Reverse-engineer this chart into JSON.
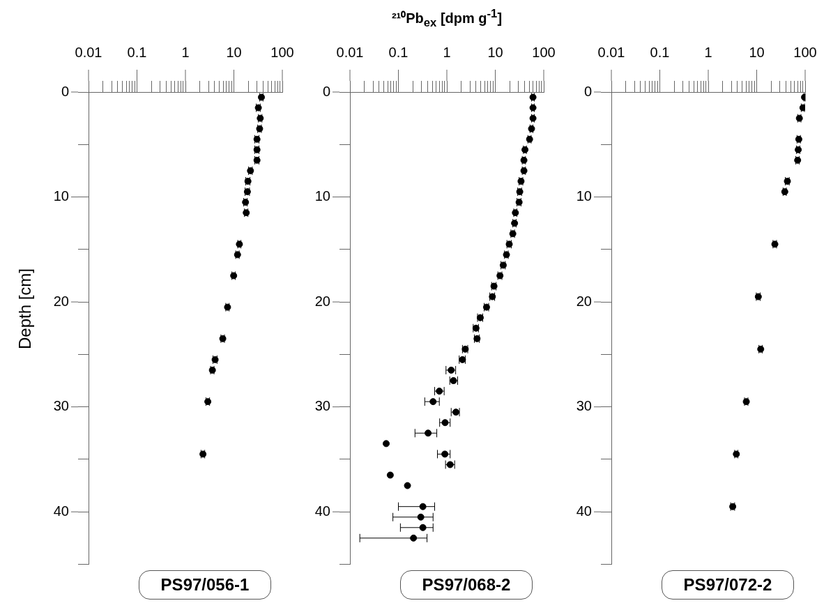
{
  "chart_data": [
    {
      "type": "scatter",
      "title": "PS97/056-1",
      "ylabel": "Depth [cm]",
      "color": "#000000",
      "marker": "circle",
      "log": "x",
      "x": [
        37,
        32,
        35,
        34,
        30,
        30,
        30,
        22,
        19.5,
        19,
        17.4,
        18,
        13,
        11.9,
        9.9,
        7.4,
        5.9,
        4.1,
        3.6,
        2.9,
        2.3
      ],
      "values": [
        0.5,
        1.5,
        2.5,
        3.5,
        4.5,
        5.5,
        6.5,
        7.5,
        8.5,
        9.5,
        10.5,
        11.5,
        14.5,
        15.5,
        17.5,
        20.5,
        23.5,
        25.5,
        26.5,
        29.5,
        34.5
      ],
      "xerrors": [
        3,
        3,
        3,
        3,
        3,
        3,
        3,
        2,
        2,
        2,
        1.5,
        1.5,
        1,
        1,
        0.8,
        0.6,
        0.5,
        0.4,
        0.3,
        0.25,
        0.2
      ],
      "xlim": [
        0.01,
        100
      ],
      "xticks": [
        0.01,
        {
          "value": 0.02,
          "label": null
        },
        {
          "value": 0.03,
          "label": null
        },
        {
          "value": 0.04,
          "label": null
        },
        {
          "value": 0.05,
          "label": null
        },
        {
          "value": 0.06,
          "label": null
        },
        {
          "value": 0.07,
          "label": null
        },
        {
          "value": 0.08,
          "label": null
        },
        {
          "value": 0.09,
          "label": null
        },
        0.1,
        {
          "value": 0.2,
          "label": null
        },
        {
          "value": 0.3,
          "label": null
        },
        {
          "value": 0.4,
          "label": null
        },
        {
          "value": 0.5,
          "label": null
        },
        {
          "value": 0.6,
          "label": null
        },
        {
          "value": 0.7,
          "label": null
        },
        {
          "value": 0.8,
          "label": null
        },
        {
          "value": 0.9,
          "label": null
        },
        1,
        {
          "value": 2,
          "label": null
        },
        {
          "value": 3,
          "label": null
        },
        {
          "value": 4,
          "label": null
        },
        {
          "value": 5,
          "label": null
        },
        {
          "value": 6,
          "label": null
        },
        {
          "value": 7,
          "label": null
        },
        {
          "value": 8,
          "label": null
        },
        {
          "value": 9,
          "label": null
        },
        10,
        {
          "value": 20,
          "label": null
        },
        {
          "value": 30,
          "label": null
        },
        {
          "value": 40,
          "label": null
        },
        {
          "value": 50,
          "label": null
        },
        {
          "value": 60,
          "label": null
        },
        {
          "value": 70,
          "label": null
        },
        {
          "value": 80,
          "label": null
        },
        {
          "value": 90,
          "label": null
        },
        100
      ],
      "ylim": [
        45,
        0
      ],
      "yticks": [
        0,
        {
          "value": 5,
          "label": null
        },
        10,
        {
          "value": 15,
          "label": null
        },
        20,
        {
          "value": 25,
          "label": null
        },
        30,
        {
          "value": 35,
          "label": null
        },
        40,
        {
          "value": 45,
          "label": null
        }
      ]
    },
    {
      "type": "scatter",
      "title": "PS97/068-2",
      "xlabel": "²¹⁰Pb$_{ex}$ [dpm g$^{-1}$]",
      "color": "#000000",
      "marker": "circle",
      "log": "x",
      "x": [
        60,
        60,
        60,
        56,
        51,
        41,
        39,
        39,
        34,
        32,
        31,
        26,
        25,
        23,
        19.4,
        17,
        14.6,
        12.5,
        9.4,
        8.7,
        6.6,
        4.9,
        4.0,
        4.2,
        2.4,
        2.1,
        1.23,
        1.37,
        0.7,
        0.52,
        1.54,
        0.92,
        0.41,
        0.056,
        0.91,
        1.17,
        0.068,
        0.154,
        0.32,
        0.29,
        0.32,
        0.205
      ],
      "values": [
        0.5,
        1.5,
        2.5,
        3.5,
        4.5,
        5.5,
        6.5,
        7.5,
        8.5,
        9.5,
        10.5,
        11.5,
        12.5,
        13.5,
        14.5,
        15.5,
        16.5,
        17.5,
        18.5,
        19.5,
        20.5,
        21.5,
        22.5,
        23.5,
        24.5,
        25.5,
        26.5,
        27.5,
        28.5,
        29.5,
        30.5,
        31.5,
        32.5,
        33.5,
        34.5,
        35.5,
        36.5,
        37.5,
        39.5,
        40.5,
        41.5,
        42.5
      ],
      "xerrors": [
        4,
        4,
        4,
        4,
        4,
        3,
        3,
        3,
        3,
        3,
        3,
        2,
        2,
        2,
        2,
        1.5,
        1.5,
        1.2,
        1,
        1,
        0.7,
        0.6,
        0.5,
        0.5,
        0.3,
        0.3,
        [
          0.96,
          1.52
        ],
        [
          1.15,
          1.67
        ],
        [
          0.56,
          0.88
        ],
        [
          0.35,
          0.7
        ],
        [
          1.23,
          1.82
        ],
        [
          0.71,
          1.17
        ],
        [
          0.22,
          0.62
        ],
        null,
        [
          0.64,
          1.17
        ],
        [
          0.94,
          1.45
        ],
        null,
        null,
        [
          0.1,
          0.56
        ],
        [
          0.077,
          0.52
        ],
        [
          0.11,
          0.52
        ],
        [
          0.016,
          0.39
        ]
      ],
      "xlim": [
        0.01,
        100
      ],
      "xticks": [
        0.01,
        {
          "value": 0.02,
          "label": null
        },
        {
          "value": 0.03,
          "label": null
        },
        {
          "value": 0.04,
          "label": null
        },
        {
          "value": 0.05,
          "label": null
        },
        {
          "value": 0.06,
          "label": null
        },
        {
          "value": 0.07,
          "label": null
        },
        {
          "value": 0.08,
          "label": null
        },
        {
          "value": 0.09,
          "label": null
        },
        0.1,
        {
          "value": 0.2,
          "label": null
        },
        {
          "value": 0.3,
          "label": null
        },
        {
          "value": 0.4,
          "label": null
        },
        {
          "value": 0.5,
          "label": null
        },
        {
          "value": 0.6,
          "label": null
        },
        {
          "value": 0.7,
          "label": null
        },
        {
          "value": 0.8,
          "label": null
        },
        {
          "value": 0.9,
          "label": null
        },
        1,
        {
          "value": 2,
          "label": null
        },
        {
          "value": 3,
          "label": null
        },
        {
          "value": 4,
          "label": null
        },
        {
          "value": 5,
          "label": null
        },
        {
          "value": 6,
          "label": null
        },
        {
          "value": 7,
          "label": null
        },
        {
          "value": 8,
          "label": null
        },
        {
          "value": 9,
          "label": null
        },
        10,
        {
          "value": 20,
          "label": null
        },
        {
          "value": 30,
          "label": null
        },
        {
          "value": 40,
          "label": null
        },
        {
          "value": 50,
          "label": null
        },
        {
          "value": 60,
          "label": null
        },
        {
          "value": 70,
          "label": null
        },
        {
          "value": 80,
          "label": null
        },
        {
          "value": 90,
          "label": null
        },
        100
      ],
      "ylim": [
        45,
        0
      ],
      "yticks": [
        0,
        {
          "value": 5,
          "label": null
        },
        10,
        {
          "value": 15,
          "label": null
        },
        20,
        {
          "value": 25,
          "label": null
        },
        30,
        {
          "value": 35,
          "label": null
        },
        40,
        {
          "value": 45,
          "label": null
        }
      ]
    },
    {
      "type": "scatter",
      "title": "PS97/072-2",
      "color": "#000000",
      "marker": "circle",
      "log": "x",
      "x": [
        97,
        90,
        76,
        74,
        72,
        70,
        43,
        38,
        23.7,
        10.8,
        12.1,
        6.1,
        3.8,
        3.2
      ],
      "values": [
        0.5,
        1.5,
        2.5,
        4.5,
        5.5,
        6.5,
        8.5,
        9.5,
        14.5,
        19.5,
        24.5,
        29.5,
        34.5,
        39.5
      ],
      "xerrors": [
        3,
        7,
        6,
        6,
        6,
        6,
        4,
        3,
        2,
        1,
        1,
        0.5,
        0.3,
        0.3
      ],
      "xlim": [
        0.01,
        100
      ],
      "xticks": [
        0.01,
        {
          "value": 0.02,
          "label": null
        },
        {
          "value": 0.03,
          "label": null
        },
        {
          "value": 0.04,
          "label": null
        },
        {
          "value": 0.05,
          "label": null
        },
        {
          "value": 0.06,
          "label": null
        },
        {
          "value": 0.07,
          "label": null
        },
        {
          "value": 0.08,
          "label": null
        },
        {
          "value": 0.09,
          "label": null
        },
        0.1,
        {
          "value": 0.2,
          "label": null
        },
        {
          "value": 0.3,
          "label": null
        },
        {
          "value": 0.4,
          "label": null
        },
        {
          "value": 0.5,
          "label": null
        },
        {
          "value": 0.6,
          "label": null
        },
        {
          "value": 0.7,
          "label": null
        },
        {
          "value": 0.8,
          "label": null
        },
        {
          "value": 0.9,
          "label": null
        },
        1,
        {
          "value": 2,
          "label": null
        },
        {
          "value": 3,
          "label": null
        },
        {
          "value": 4,
          "label": null
        },
        {
          "value": 5,
          "label": null
        },
        {
          "value": 6,
          "label": null
        },
        {
          "value": 7,
          "label": null
        },
        {
          "value": 8,
          "label": null
        },
        {
          "value": 9,
          "label": null
        },
        10,
        {
          "value": 20,
          "label": null
        },
        {
          "value": 30,
          "label": null
        },
        {
          "value": 40,
          "label": null
        },
        {
          "value": 50,
          "label": null
        },
        {
          "value": 60,
          "label": null
        },
        {
          "value": 70,
          "label": null
        },
        {
          "value": 80,
          "label": null
        },
        {
          "value": 90,
          "label": null
        },
        100
      ],
      "ylim": [
        45,
        0
      ],
      "yticks": [
        0,
        {
          "value": 5,
          "label": null
        },
        10,
        {
          "value": 15,
          "label": null
        },
        20,
        {
          "value": 25,
          "label": null
        },
        30,
        {
          "value": 35,
          "label": null
        },
        40,
        {
          "value": 45,
          "label": null
        }
      ]
    }
  ]
}
